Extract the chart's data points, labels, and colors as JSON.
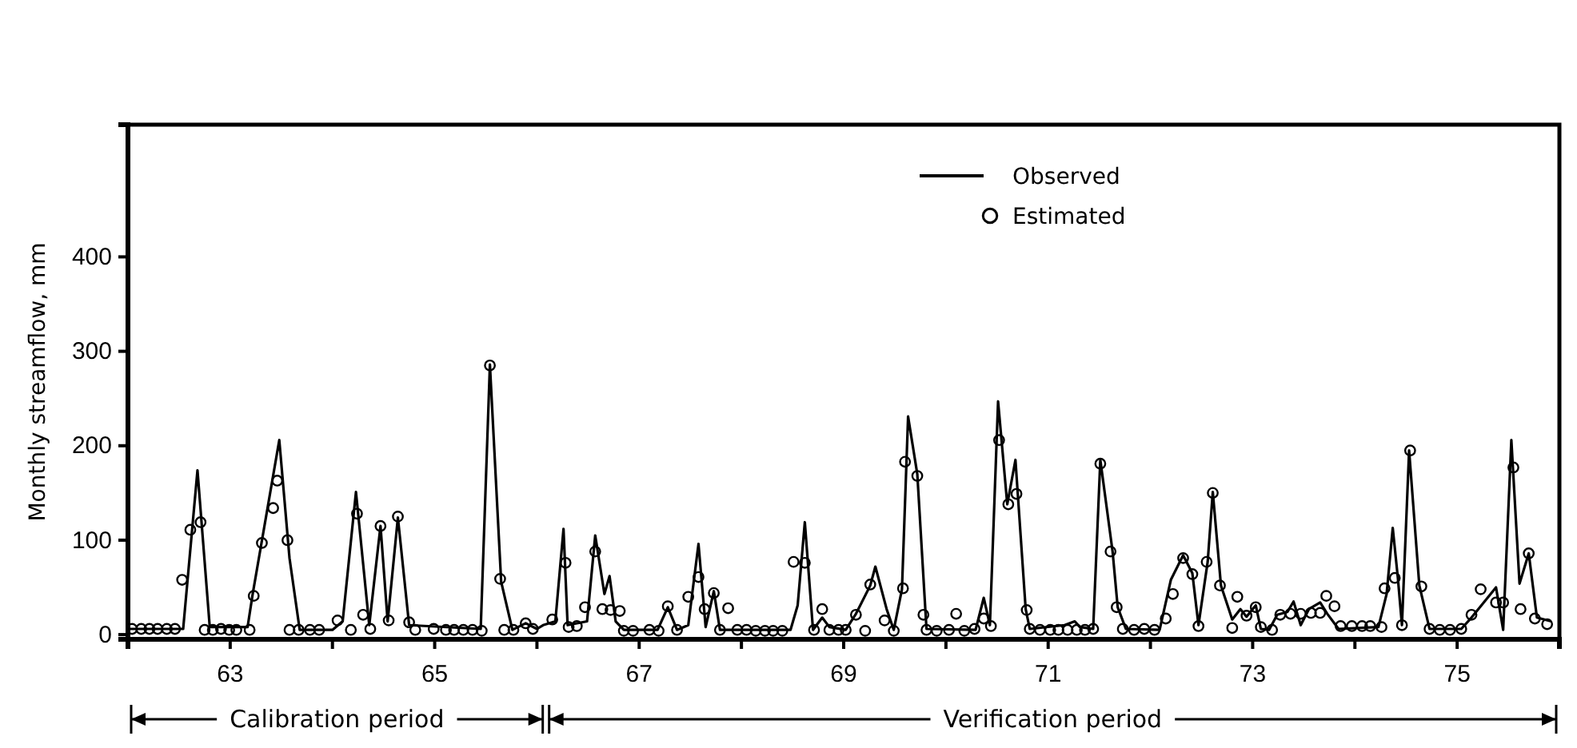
{
  "chart_data": {
    "type": "line",
    "ylabel": "Monthly streamflow, mm",
    "xlim": [
      62,
      76
    ],
    "ylim": [
      -5,
      540
    ],
    "xticks": [
      63,
      {
        "value": 64,
        "label": null
      },
      65,
      {
        "value": 66,
        "label": null
      },
      67,
      {
        "value": 68,
        "label": null
      },
      69,
      {
        "value": 70,
        "label": null
      },
      71,
      {
        "value": 72,
        "label": null
      },
      73,
      {
        "value": 74,
        "label": null
      },
      75
    ],
    "yticks": [
      0,
      100,
      200,
      300,
      400
    ],
    "grid": false,
    "legend": "top right",
    "annotations": [
      "Calibration period",
      "Verification period"
    ],
    "series": [
      {
        "name": "Observed",
        "type": "line",
        "color": "#000000",
        "marker": "none",
        "line_style": "solid",
        "x": [
          62.0,
          62.54,
          62.68,
          62.8,
          63.17,
          63.22,
          63.48,
          63.58,
          63.68,
          64.0,
          64.1,
          64.23,
          64.36,
          64.47,
          64.54,
          64.64,
          64.75,
          65.45,
          65.54,
          65.65,
          65.76,
          65.89,
          66.0,
          66.06,
          66.18,
          66.26,
          66.3,
          66.49,
          66.57,
          66.66,
          66.71,
          66.77,
          66.85,
          67.18,
          67.28,
          67.37,
          67.48,
          67.58,
          67.65,
          67.73,
          67.79,
          68.48,
          68.55,
          68.62,
          68.7,
          68.79,
          68.86,
          69.02,
          69.12,
          69.26,
          69.31,
          69.42,
          69.49,
          69.57,
          69.63,
          69.72,
          69.81,
          70.29,
          70.37,
          70.43,
          70.51,
          70.6,
          70.68,
          70.78,
          70.82,
          71.16,
          71.26,
          71.31,
          71.44,
          71.51,
          71.63,
          71.68,
          71.76,
          72.09,
          72.2,
          72.32,
          72.41,
          72.47,
          72.56,
          72.61,
          72.69,
          72.8,
          72.88,
          72.94,
          73.03,
          73.08,
          73.16,
          73.24,
          73.34,
          73.4,
          73.47,
          73.55,
          73.66,
          73.73,
          73.84,
          74.23,
          74.31,
          74.37,
          74.42,
          74.46,
          74.53,
          74.63,
          74.73,
          75.04,
          75.14,
          75.38,
          75.45,
          75.53,
          75.61,
          75.7,
          75.78,
          75.92
        ],
        "values": [
          6,
          6,
          174,
          8,
          8,
          43,
          206,
          81,
          5,
          5,
          14,
          151,
          10,
          115,
          14,
          124,
          10,
          6,
          286,
          56,
          5,
          12,
          6,
          10,
          14,
          112,
          10,
          14,
          105,
          43,
          62,
          14,
          5,
          5,
          29,
          5,
          10,
          96,
          8,
          46,
          5,
          5,
          31,
          119,
          5,
          18,
          8,
          5,
          22,
          52,
          72,
          27,
          5,
          48,
          231,
          170,
          6,
          5,
          39,
          10,
          247,
          138,
          185,
          27,
          6,
          10,
          14,
          8,
          6,
          185,
          88,
          29,
          6,
          5,
          58,
          84,
          65,
          10,
          77,
          151,
          52,
          16,
          27,
          19,
          31,
          6,
          5,
          21,
          24,
          35,
          10,
          27,
          34,
          22,
          6,
          8,
          43,
          113,
          60,
          10,
          195,
          52,
          6,
          6,
          18,
          50,
          5,
          206,
          54,
          86,
          18,
          14
        ]
      },
      {
        "name": "Estimated",
        "type": "scatter",
        "color": "#000000",
        "marker": "circle",
        "x": [
          62.04,
          62.13,
          62.21,
          62.29,
          62.38,
          62.46,
          62.53,
          62.61,
          62.71,
          62.75,
          62.83,
          62.91,
          62.99,
          63.06,
          63.19,
          63.23,
          63.31,
          63.42,
          63.46,
          63.56,
          63.58,
          63.67,
          63.78,
          63.87,
          64.05,
          64.18,
          64.24,
          64.3,
          64.37,
          64.47,
          64.55,
          64.64,
          64.75,
          64.81,
          64.99,
          65.11,
          65.19,
          65.28,
          65.37,
          65.46,
          65.54,
          65.64,
          65.68,
          65.77,
          65.89,
          65.96,
          66.15,
          66.28,
          66.31,
          66.39,
          66.47,
          66.57,
          66.64,
          66.72,
          66.81,
          66.85,
          66.94,
          67.1,
          67.19,
          67.28,
          67.37,
          67.48,
          67.58,
          67.64,
          67.73,
          67.79,
          67.87,
          67.96,
          68.05,
          68.14,
          68.23,
          68.31,
          68.4,
          68.51,
          68.62,
          68.71,
          68.79,
          68.86,
          68.95,
          69.02,
          69.12,
          69.21,
          69.26,
          69.4,
          69.49,
          69.58,
          69.6,
          69.72,
          69.78,
          69.81,
          69.91,
          70.03,
          70.1,
          70.18,
          70.28,
          70.37,
          70.44,
          70.52,
          70.61,
          70.69,
          70.79,
          70.82,
          70.92,
          71.02,
          71.1,
          71.19,
          71.28,
          71.36,
          71.44,
          71.51,
          71.61,
          71.67,
          71.73,
          71.84,
          71.94,
          72.04,
          72.15,
          72.22,
          72.32,
          72.41,
          72.47,
          72.55,
          72.61,
          72.68,
          72.8,
          72.85,
          72.94,
          73.03,
          73.08,
          73.19,
          73.27,
          73.37,
          73.47,
          73.57,
          73.66,
          73.72,
          73.8,
          73.86,
          73.97,
          74.07,
          74.15,
          74.26,
          74.29,
          74.39,
          74.46,
          74.54,
          74.65,
          74.73,
          74.83,
          74.93,
          75.04,
          75.14,
          75.23,
          75.38,
          75.45,
          75.55,
          75.62,
          75.7,
          75.76,
          75.88
        ],
        "values": [
          6,
          6,
          6,
          6,
          6,
          6,
          58,
          111,
          119,
          5,
          5,
          6,
          5,
          5,
          5,
          41,
          97,
          134,
          163,
          100,
          5,
          5,
          5,
          5,
          15,
          5,
          128,
          21,
          6,
          115,
          15,
          125,
          13,
          5,
          6,
          5,
          5,
          5,
          5,
          4,
          285,
          59,
          5,
          5,
          12,
          6,
          16,
          76,
          8,
          9,
          29,
          88,
          27,
          26,
          25,
          4,
          4,
          5,
          4,
          30,
          5,
          40,
          61,
          27,
          44,
          5,
          28,
          5,
          5,
          4,
          4,
          4,
          4,
          77,
          76,
          5,
          27,
          5,
          5,
          5,
          21,
          4,
          53,
          15,
          4,
          49,
          183,
          168,
          21,
          5,
          4,
          5,
          22,
          4,
          6,
          17,
          9,
          206,
          138,
          149,
          26,
          6,
          5,
          5,
          5,
          5,
          5,
          5,
          6,
          181,
          88,
          29,
          6,
          5,
          6,
          5,
          17,
          43,
          81,
          64,
          9,
          77,
          150,
          52,
          7,
          40,
          20,
          29,
          8,
          5,
          21,
          22,
          22,
          23,
          23,
          41,
          30,
          9,
          9,
          9,
          9,
          8,
          49,
          60,
          10,
          195,
          51,
          6,
          5,
          5,
          6,
          21,
          48,
          34,
          34,
          177,
          27,
          86,
          17,
          11
        ]
      }
    ]
  }
}
